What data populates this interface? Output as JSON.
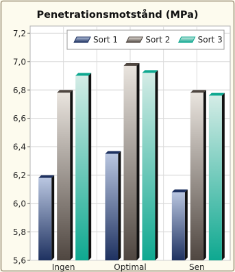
{
  "chart_data": {
    "type": "bar",
    "title": "Penetrationsmotstånd (MPa)",
    "xlabel": "",
    "ylabel": "",
    "categories": [
      "Ingen",
      "Optimal",
      "Sen"
    ],
    "series": [
      {
        "name": "Sort 1",
        "values": [
          6.18,
          6.35,
          6.08
        ]
      },
      {
        "name": "Sort 2",
        "values": [
          6.78,
          6.97,
          6.78
        ]
      },
      {
        "name": "Sort 3",
        "values": [
          6.9,
          6.92,
          6.76
        ]
      }
    ],
    "ylim": [
      5.6,
      7.25
    ],
    "yticks": [
      "5,6",
      "5,8",
      "6,0",
      "6,2",
      "6,4",
      "6,6",
      "6,8",
      "7,0",
      "7,2"
    ],
    "grid": true,
    "legend": "top-right",
    "colors": {
      "sort1_light": "#b9c6e0",
      "sort1_dark": "#1e3160",
      "sort2_light": "#e9e4de",
      "sort2_dark": "#4f4640",
      "sort3_light": "#d4ece6",
      "sort3_dark": "#0ea890",
      "background": "#fdfbee",
      "plot_background": "#ffffff",
      "frame": "#9c8f76"
    }
  }
}
